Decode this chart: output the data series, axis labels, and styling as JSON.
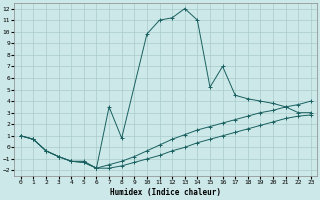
{
  "title": "",
  "xlabel": "Humidex (Indice chaleur)",
  "background_color": "#cce8e8",
  "grid_color": "#aacccc",
  "line_color": "#1a6060",
  "xlim": [
    -0.5,
    23.5
  ],
  "ylim": [
    -2.5,
    12.5
  ],
  "yticks": [
    -2,
    -1,
    0,
    1,
    2,
    3,
    4,
    5,
    6,
    7,
    8,
    9,
    10,
    11,
    12
  ],
  "xticks": [
    0,
    1,
    2,
    3,
    4,
    5,
    6,
    7,
    8,
    9,
    10,
    11,
    12,
    13,
    14,
    15,
    16,
    17,
    18,
    19,
    20,
    21,
    22,
    23
  ],
  "x_main": [
    0,
    1,
    2,
    3,
    4,
    5,
    6,
    7,
    8,
    10,
    11,
    12,
    13,
    14,
    15,
    16,
    17,
    18,
    19,
    20,
    21,
    22,
    23
  ],
  "y_main": [
    1.0,
    0.7,
    -0.3,
    -0.8,
    -1.2,
    -1.2,
    -1.8,
    3.5,
    0.8,
    9.8,
    11.0,
    11.2,
    12.0,
    11.0,
    5.2,
    7.0,
    4.5,
    4.2,
    4.0,
    3.8,
    3.5,
    3.0,
    3.0
  ],
  "x_low": [
    0,
    1,
    2,
    3,
    4,
    5,
    6,
    7,
    8,
    9,
    10,
    11,
    12,
    13,
    14,
    15,
    16,
    17,
    18,
    19,
    20,
    21,
    22,
    23
  ],
  "y_low": [
    1.0,
    0.7,
    -0.3,
    -0.8,
    -1.2,
    -1.3,
    -1.8,
    -1.8,
    -1.6,
    -1.3,
    -1.0,
    -0.7,
    -0.3,
    0.0,
    0.4,
    0.7,
    1.0,
    1.3,
    1.6,
    1.9,
    2.2,
    2.5,
    2.7,
    2.8
  ],
  "x_mid": [
    0,
    1,
    2,
    3,
    4,
    5,
    6,
    7,
    8,
    9,
    10,
    11,
    12,
    13,
    14,
    15,
    16,
    17,
    18,
    19,
    20,
    21,
    22,
    23
  ],
  "y_mid": [
    1.0,
    0.7,
    -0.3,
    -0.8,
    -1.2,
    -1.3,
    -1.8,
    -1.5,
    -1.2,
    -0.8,
    -0.3,
    0.2,
    0.7,
    1.1,
    1.5,
    1.8,
    2.1,
    2.4,
    2.7,
    3.0,
    3.2,
    3.5,
    3.7,
    4.0
  ]
}
